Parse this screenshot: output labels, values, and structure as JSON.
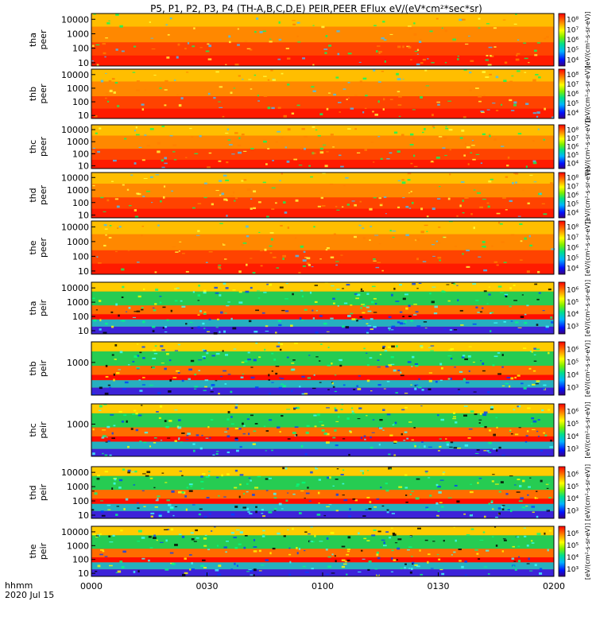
{
  "chart_data": {
    "type": "heatmap",
    "title": "P5, P1, P2, P3, P4 (TH-A,B,C,D,E) PEIR,PEER EFlux eV/(eV*cm²*sec*sr)",
    "x_ticks": [
      "0000",
      "0030",
      "0100",
      "0130",
      "0200"
    ],
    "x_minutes": [
      0,
      30,
      60,
      90,
      120
    ],
    "xlim_minutes": [
      0,
      120
    ],
    "x_label_line1": "hhmm",
    "x_label_line2": "2020 Jul 15",
    "colorbar_unit": "[eV/(cm²-s-sr-eV)]",
    "panels": [
      {
        "probe": "tha",
        "product": "peer",
        "yticks": [
          "10",
          "100",
          "1000",
          "10000"
        ],
        "cbar_ticks": [
          "10⁴",
          "10⁵",
          "10⁶",
          "10⁷",
          "10⁸"
        ]
      },
      {
        "probe": "thb",
        "product": "peer",
        "yticks": [
          "10",
          "100",
          "1000",
          "10000"
        ],
        "cbar_ticks": [
          "10⁴",
          "10⁵",
          "10⁶",
          "10⁷",
          "10⁸"
        ]
      },
      {
        "probe": "thc",
        "product": "peer",
        "yticks": [
          "10",
          "100",
          "1000",
          "10000"
        ],
        "cbar_ticks": [
          "10⁴",
          "10⁵",
          "10⁶",
          "10⁷",
          "10⁸"
        ]
      },
      {
        "probe": "thd",
        "product": "peer",
        "yticks": [
          "10",
          "100",
          "1000",
          "10000"
        ],
        "cbar_ticks": [
          "10⁴",
          "10⁵",
          "10⁶",
          "10⁷",
          "10⁸"
        ]
      },
      {
        "probe": "the",
        "product": "peer",
        "yticks": [
          "10",
          "100",
          "1000",
          "10000"
        ],
        "cbar_ticks": [
          "10⁴",
          "10⁵",
          "10⁶",
          "10⁷",
          "10⁸"
        ]
      },
      {
        "probe": "tha",
        "product": "peir",
        "yticks": [
          "10",
          "100",
          "1000",
          "10000"
        ],
        "cbar_ticks": [
          "10³",
          "10⁴",
          "10⁵",
          "10⁶"
        ]
      },
      {
        "probe": "thb",
        "product": "peir",
        "yticks": [
          "1000"
        ],
        "cbar_ticks": [
          "10³",
          "10⁴",
          "10⁵",
          "10⁶"
        ]
      },
      {
        "probe": "thc",
        "product": "peir",
        "yticks": [
          "1000"
        ],
        "cbar_ticks": [
          "10³",
          "10⁴",
          "10⁵",
          "10⁶"
        ]
      },
      {
        "probe": "thd",
        "product": "peir",
        "yticks": [
          "10",
          "100",
          "1000",
          "10000"
        ],
        "cbar_ticks": [
          "10³",
          "10⁴",
          "10⁵",
          "10⁶"
        ]
      },
      {
        "probe": "the",
        "product": "peir",
        "yticks": [
          "10",
          "100",
          "1000",
          "10000"
        ],
        "cbar_ticks": [
          "10³",
          "10⁴",
          "10⁵",
          "10⁶"
        ]
      }
    ]
  }
}
